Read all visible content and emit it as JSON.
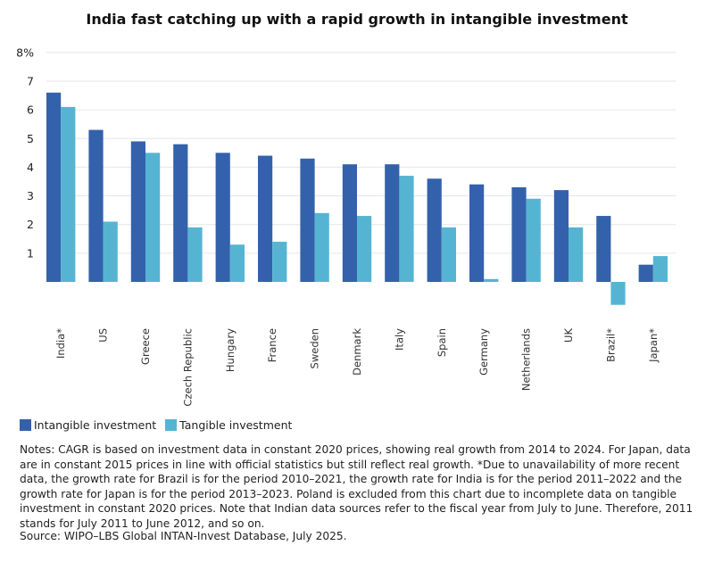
{
  "chart_data": {
    "type": "bar",
    "title": "India fast catching up with a rapid growth in intangible investment",
    "xlabel": "",
    "ylabel": "",
    "ylim": [
      -1,
      8
    ],
    "yticks": [
      1,
      2,
      3,
      4,
      5,
      6,
      7,
      8
    ],
    "ytick_labels": [
      "1",
      "2",
      "3",
      "4",
      "5",
      "6",
      "7",
      "8%"
    ],
    "grid": true,
    "legend_position": "bottom-left",
    "categories": [
      "India*",
      "US",
      "Greece",
      "Czech Republic",
      "Hungary",
      "France",
      "Sweden",
      "Denmark",
      "Italy",
      "Spain",
      "Germany",
      "Netherlands",
      "UK",
      "Brazil*",
      "Japan*"
    ],
    "series": [
      {
        "name": "Intangible investment",
        "color": "#3461AB",
        "values": [
          6.6,
          5.3,
          4.9,
          4.8,
          4.5,
          4.4,
          4.3,
          4.1,
          4.1,
          3.6,
          3.4,
          3.3,
          3.2,
          2.3,
          0.6
        ]
      },
      {
        "name": "Tangible investment",
        "color": "#56B4D3",
        "values": [
          6.1,
          2.1,
          4.5,
          1.9,
          1.3,
          1.4,
          2.4,
          2.3,
          3.7,
          1.9,
          0.1,
          2.9,
          1.9,
          -0.8,
          0.9
        ]
      }
    ]
  },
  "notes": "Notes: CAGR is based on investment data in constant 2020 prices, showing real growth from 2014 to 2024. For Japan, data are in constant 2015 prices in line with official statistics but still reflect real growth. *Due to unavailability of more recent data, the growth rate for Brazil is for the period 2010–2021, the growth rate for India is for the period 2011–2022 and the growth rate for Japan is for the period 2013–2023. Poland is excluded from this chart due to incomplete data on tangible investment in constant 2020 prices. Note that Indian data sources refer to the fiscal year from July to June. Therefore, 2011 stands for July 2011 to June 2012, and so on.",
  "source": "Source: WIPO–LBS Global INTAN-Invest Database, July 2025."
}
